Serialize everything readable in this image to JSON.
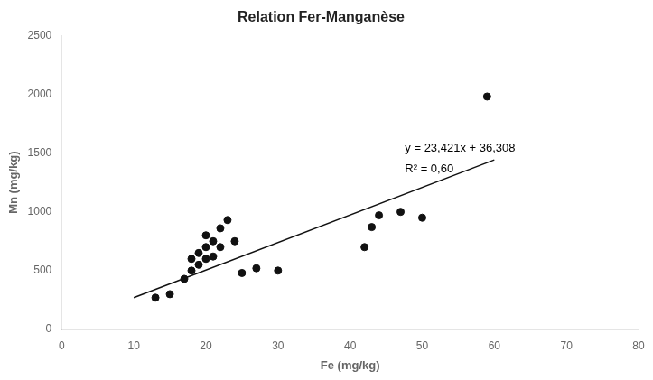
{
  "chart_data": {
    "type": "scatter",
    "title": "Relation Fer-Manganèse",
    "xlabel": "Fe (mg/kg)",
    "ylabel": "Mn (mg/kg)",
    "xlim": [
      0,
      80
    ],
    "ylim": [
      0,
      2500
    ],
    "xticks": [
      0,
      10,
      20,
      30,
      40,
      50,
      60,
      70,
      80
    ],
    "yticks": [
      0,
      500,
      1000,
      1500,
      2000,
      2500
    ],
    "grid": false,
    "series": [
      {
        "type": "scatter",
        "color": "#111111",
        "x": [
          13,
          15,
          17,
          18,
          18,
          19,
          19,
          20,
          20,
          20,
          21,
          21,
          22,
          22,
          23,
          24,
          25,
          27,
          30,
          42,
          43,
          44,
          47,
          50,
          59
        ],
        "values": [
          270,
          300,
          430,
          500,
          600,
          550,
          650,
          600,
          700,
          800,
          620,
          750,
          700,
          860,
          930,
          750,
          480,
          520,
          500,
          700,
          870,
          970,
          1000,
          950,
          1980
        ]
      },
      {
        "type": "line",
        "color": "#111111",
        "x": [
          10,
          60
        ],
        "values": [
          270.518,
          1441.568
        ]
      }
    ],
    "annotations": [
      "y = 23,421x + 36,308",
      "R² = 0,60"
    ]
  }
}
